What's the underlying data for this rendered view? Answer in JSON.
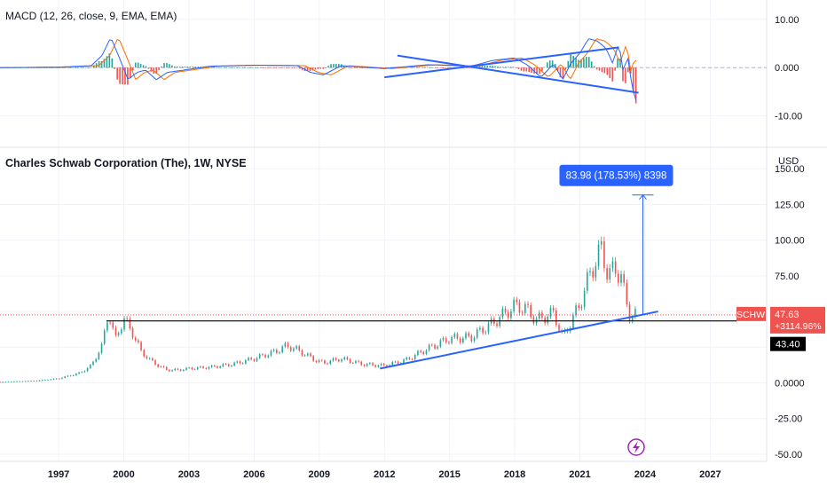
{
  "macd_pane": {
    "title": "MACD (12, 26, close, 9, EMA, EMA)",
    "ticks": [
      "10.00",
      "0.000",
      "-10.00"
    ],
    "tick_values": [
      10,
      0,
      -10
    ]
  },
  "price_pane": {
    "title": "Charles Schwab Corporation (The), 1W, NYSE",
    "currency": "USD",
    "ticks": [
      "150.00",
      "125.00",
      "100.00",
      "75.00",
      "50.00",
      "25.00",
      "0.0000",
      "-25.00",
      "-50.00"
    ],
    "tick_values": [
      150,
      125,
      100,
      75,
      50,
      25,
      0,
      -25,
      -50
    ]
  },
  "x_axis": {
    "labels": [
      "1997",
      "2000",
      "2003",
      "2006",
      "2009",
      "2012",
      "2015",
      "2018",
      "2021",
      "2024",
      "2027"
    ],
    "years": [
      1997,
      2000,
      2003,
      2006,
      2009,
      2012,
      2015,
      2018,
      2021,
      2024,
      2027
    ]
  },
  "tags": {
    "symbol": "SCHW",
    "last_price": "47.63",
    "change_pct": "+3114.96%",
    "level_price": "43.40"
  },
  "measure": {
    "label": "83.98 (178.53%) 8398",
    "from_price": 47.63,
    "to_price": 131.6,
    "year": 2023.9
  },
  "chart_data": {
    "type": "line",
    "title": "Charles Schwab Corporation (The), 1W, NYSE",
    "ylabel": "USD",
    "ylim": [
      -55,
      165
    ],
    "xlim": [
      1994.3,
      2029.6
    ],
    "series": [
      {
        "name": "SCHW",
        "x": [
          1994.3,
          1996,
          1997,
          1998,
          1998.5,
          1999.0,
          1999.3,
          1999.6,
          2000.0,
          2000.4,
          2000.8,
          2001.2,
          2001.6,
          2002.0,
          2002.5,
          2003.0,
          2004.0,
          2005.0,
          2006.0,
          2007.0,
          2007.5,
          2008.0,
          2008.8,
          2009.2,
          2010.0,
          2011.0,
          2012.0,
          2013.0,
          2014.0,
          2015.0,
          2016.0,
          2017.0,
          2018.0,
          2018.5,
          2019.0,
          2019.8,
          2020.2,
          2020.5,
          2021.0,
          2021.5,
          2022.0,
          2022.3,
          2022.6,
          2022.9,
          2023.1,
          2023.3,
          2023.6
        ],
        "values": [
          0.5,
          1.5,
          3,
          7,
          12,
          26,
          50,
          30,
          45,
          35,
          22,
          16,
          12,
          9,
          9,
          10,
          11,
          13,
          17,
          22,
          26,
          23,
          16,
          14,
          17,
          13,
          12,
          16,
          24,
          31,
          32,
          42,
          54,
          52,
          44,
          49,
          32,
          40,
          55,
          78,
          94,
          75,
          80,
          75,
          58,
          47,
          47.63
        ]
      }
    ],
    "support_line": {
      "from": [
        2011.8,
        10
      ],
      "to": [
        2024.6,
        50
      ]
    },
    "horizontal_level": 43.4
  },
  "macd_data": {
    "x": [
      1994.3,
      1997,
      1998.5,
      1999.0,
      1999.4,
      1999.8,
      2000.2,
      2000.6,
      2001.0,
      2001.5,
      2002.0,
      2004.0,
      2006.0,
      2008.0,
      2008.6,
      2009.2,
      2010.0,
      2012.0,
      2014.0,
      2016.0,
      2017.0,
      2018.0,
      2018.6,
      2019.2,
      2019.8,
      2020.2,
      2020.6,
      2021.0,
      2021.4,
      2021.8,
      2022.2,
      2022.5,
      2022.8,
      2023.0,
      2023.2,
      2023.4,
      2023.6
    ],
    "values": [
      0,
      0.1,
      0.4,
      2.5,
      6.3,
      2,
      -2.5,
      -1,
      -0.5,
      -2.5,
      -1,
      0.3,
      0.5,
      0.4,
      -1,
      -1.5,
      0.4,
      -0.2,
      0.6,
      0.3,
      1.5,
      2,
      0.5,
      -2,
      0.8,
      -2.5,
      1,
      3,
      6,
      5.5,
      4,
      1,
      5,
      -1,
      2.5,
      -4,
      -7
    ],
    "trendlines": [
      {
        "from": [
          2012.0,
          -2
        ],
        "to": [
          2022.8,
          4.2
        ]
      },
      {
        "from": [
          2012.6,
          2.5
        ],
        "to": [
          2023.7,
          -5.2
        ]
      }
    ]
  },
  "colors": {
    "up": "#26a69a",
    "down": "#ef5350",
    "trendline": "#2962ff",
    "macd": "#2962ff",
    "signal": "#ff6d00",
    "level": "#000000",
    "price_label_bg": "#ef5350",
    "measure_bg": "#2962ff"
  }
}
